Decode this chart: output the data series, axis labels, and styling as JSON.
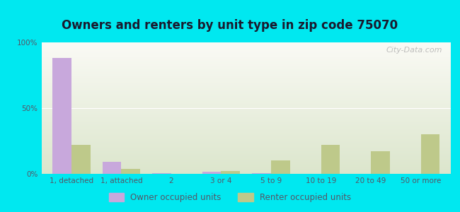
{
  "title": "Owners and renters by unit type in zip code 75070",
  "categories": [
    "1, detached",
    "1, attached",
    "2",
    "3 or 4",
    "5 to 9",
    "10 to 19",
    "20 to 49",
    "50 or more"
  ],
  "owner_values": [
    88,
    9,
    0.3,
    1.5,
    0.3,
    0,
    0,
    0
  ],
  "renter_values": [
    22,
    4,
    0,
    2,
    10,
    22,
    17,
    30
  ],
  "owner_color": "#c8a8dc",
  "renter_color": "#bec98a",
  "background_outer": "#00e8f0",
  "title_fontsize": 12,
  "tick_label_fontsize": 7.5,
  "legend_fontsize": 8.5,
  "ylim": [
    0,
    100
  ],
  "yticks": [
    0,
    50,
    100
  ],
  "ytick_labels": [
    "0%",
    "50%",
    "100%"
  ],
  "watermark_text": "City-Data.com",
  "bar_width": 0.38,
  "title_color": "#1a1a2e",
  "tick_color": "#555566"
}
